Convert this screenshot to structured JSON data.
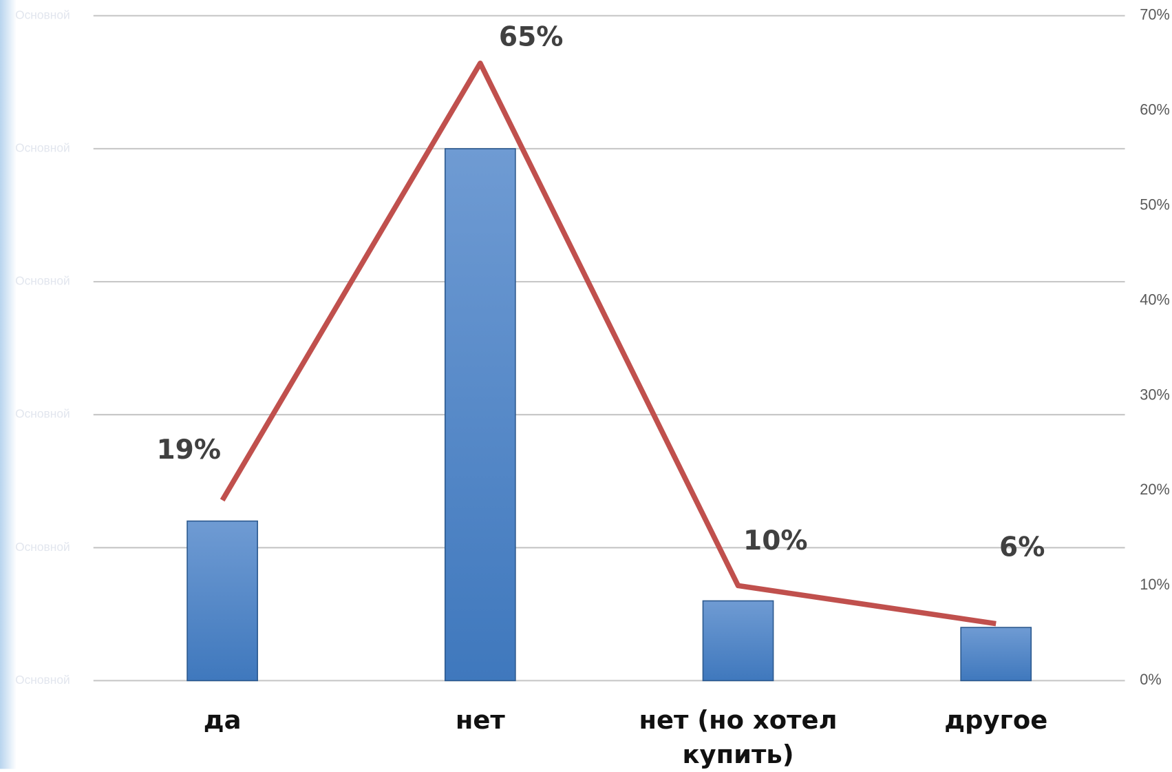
{
  "chart_data": {
    "type": "bar-line",
    "categories": [
      "да",
      "нет",
      "нет (но хотел купить)",
      "другое"
    ],
    "series": [
      {
        "type": "bar",
        "color": "#4f81bd",
        "values": [
          1.2,
          4,
          0.6,
          0.4
        ]
      },
      {
        "type": "line",
        "axis": "y2",
        "color": "#c0504d",
        "values": [
          19,
          65,
          10,
          6
        ],
        "value_labels": [
          "19%",
          "65%",
          "10%",
          "6%"
        ]
      }
    ],
    "ylim": [
      0,
      5
    ],
    "yticks": [
      {
        "value": 0,
        "label": "Основной"
      },
      {
        "value": 1,
        "label": "Основной"
      },
      {
        "value": 2,
        "label": "Основной"
      },
      {
        "value": 3,
        "label": "Основной"
      },
      {
        "value": 4,
        "label": "Основной"
      },
      {
        "value": 5,
        "label": "Основной"
      }
    ],
    "y2lim": [
      0,
      70
    ],
    "y2ticks": [
      {
        "value": 0,
        "label": "0%"
      },
      {
        "value": 10,
        "label": "10%"
      },
      {
        "value": 20,
        "label": "20%"
      },
      {
        "value": 30,
        "label": "30%"
      },
      {
        "value": 40,
        "label": "40%"
      },
      {
        "value": 50,
        "label": "50%"
      },
      {
        "value": 60,
        "label": "60%"
      },
      {
        "value": 70,
        "label": "70%"
      }
    ],
    "grid": true
  }
}
